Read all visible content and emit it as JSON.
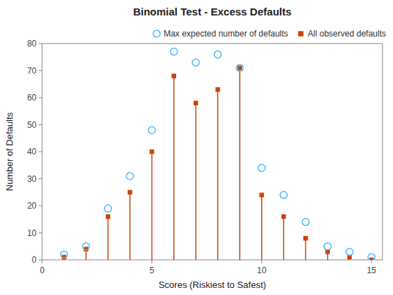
{
  "chart_data": {
    "type": "stem",
    "title": "Binomial Test - Excess Defaults",
    "xlabel": "Scores (Riskiest to Safest)",
    "ylabel": "Number of Defaults",
    "x": [
      1,
      2,
      3,
      4,
      5,
      6,
      7,
      8,
      9,
      10,
      11,
      12,
      13,
      14,
      15
    ],
    "series": [
      {
        "name": "Max expected number of defaults",
        "type": "scatter",
        "marker": "circle",
        "color": "#4db8ff",
        "values": [
          2,
          5,
          19,
          31,
          48,
          77,
          73,
          76,
          71,
          34,
          24,
          14,
          5,
          3,
          1
        ]
      },
      {
        "name": "All observed defaults",
        "type": "stem",
        "marker": "square",
        "color": "#cc4400",
        "values": [
          1,
          4,
          16,
          25,
          40,
          68,
          58,
          63,
          71,
          24,
          16,
          8,
          3,
          1,
          0
        ]
      }
    ],
    "xlim": [
      0,
      15.5
    ],
    "xticks": [
      0,
      5,
      10,
      15
    ],
    "ylim": [
      0,
      80
    ],
    "yticks": [
      0,
      10,
      20,
      30,
      40,
      50,
      60,
      70,
      80
    ],
    "grid": false,
    "legend": "upper right"
  }
}
